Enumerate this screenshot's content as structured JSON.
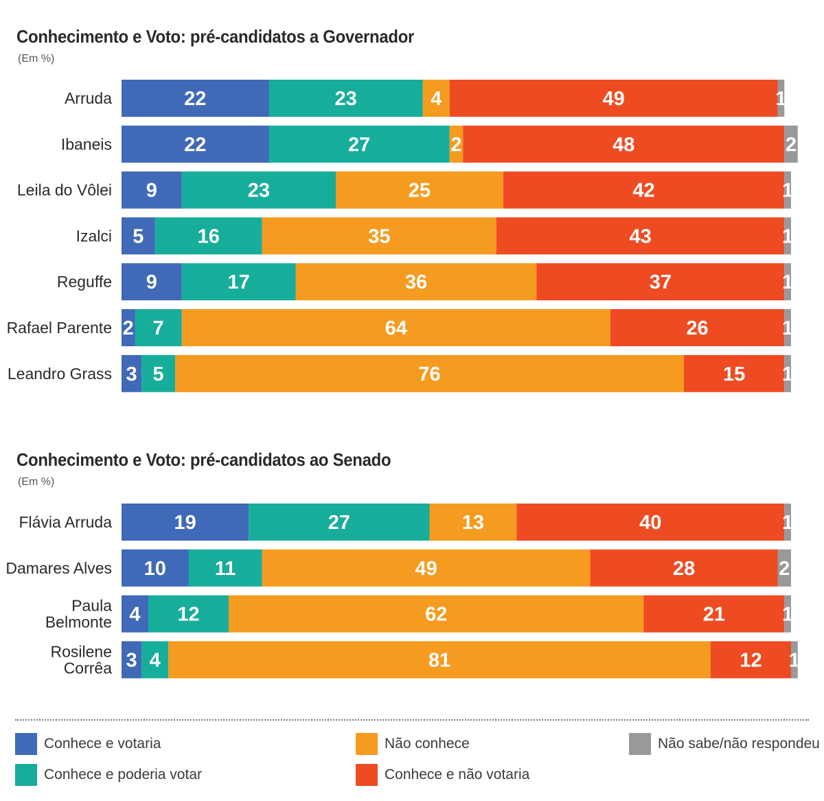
{
  "colors": {
    "Conhece e votaria": "#4069b7",
    "Conhece e poderia votar": "#17ad9b",
    "Não conhece": "#f59b20",
    "Conhece e não votaria": "#ef4b22",
    "Não sabe/não respondeu": "#999999"
  },
  "chart_data": [
    {
      "type": "bar",
      "orientation": "horizontal",
      "stacked": true,
      "title": "Conhecimento e Voto: pré-candidatos a Governador",
      "subtitle": "(Em %)",
      "categories": [
        "Arruda",
        "Ibaneis",
        "Leila do Vôlei",
        "Izalci",
        "Reguffe",
        "Rafael Parente",
        "Leandro Grass"
      ],
      "series": [
        {
          "name": "Conhece e votaria",
          "values": [
            22,
            22,
            9,
            5,
            9,
            2,
            3
          ]
        },
        {
          "name": "Conhece e poderia votar",
          "values": [
            23,
            27,
            23,
            16,
            17,
            7,
            5
          ]
        },
        {
          "name": "Não conhece",
          "values": [
            4,
            2,
            25,
            35,
            36,
            64,
            76
          ]
        },
        {
          "name": "Conhece e não votaria",
          "values": [
            49,
            48,
            42,
            43,
            37,
            26,
            15
          ]
        },
        {
          "name": "Não sabe/não respondeu",
          "values": [
            1,
            2,
            1,
            1,
            1,
            1,
            1
          ]
        }
      ]
    },
    {
      "type": "bar",
      "orientation": "horizontal",
      "stacked": true,
      "title": "Conhecimento e Voto: pré-candidatos ao Senado",
      "subtitle": "(Em %)",
      "categories": [
        "Flávia Arruda",
        "Damares Alves",
        "Paula Belmonte",
        "Rosilene Corrêa"
      ],
      "series": [
        {
          "name": "Conhece e votaria",
          "values": [
            19,
            10,
            4,
            3
          ]
        },
        {
          "name": "Conhece e poderia votar",
          "values": [
            27,
            11,
            12,
            4
          ]
        },
        {
          "name": "Não conhece",
          "values": [
            13,
            49,
            62,
            81
          ]
        },
        {
          "name": "Conhece e não votaria",
          "values": [
            40,
            28,
            21,
            12
          ]
        },
        {
          "name": "Não sabe/não respondeu",
          "values": [
            1,
            2,
            1,
            1
          ]
        }
      ]
    }
  ],
  "legend": [
    {
      "label": "Conhece e votaria",
      "color": "#4069b7"
    },
    {
      "label": "Conhece e poderia votar",
      "color": "#17ad9b"
    },
    {
      "label": "Não conhece",
      "color": "#f59b20"
    },
    {
      "label": "Conhece e não votaria",
      "color": "#ef4b22"
    },
    {
      "label": "Não sabe/não respondeu",
      "color": "#999999"
    }
  ]
}
